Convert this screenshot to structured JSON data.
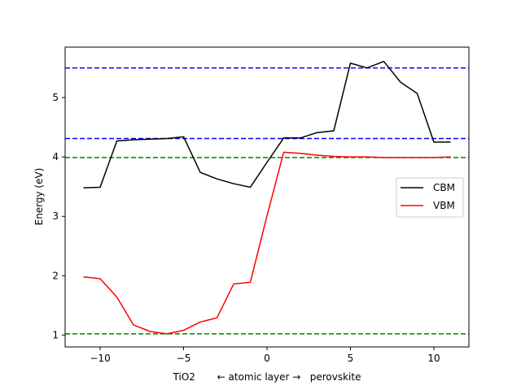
{
  "chart_data": {
    "type": "line",
    "title": "",
    "xlabel": "TiO2       ← atomic layer →   perovskite",
    "ylabel": "Energy (eV)",
    "xlim": [
      -12.1,
      12.1
    ],
    "ylim": [
      0.8,
      5.85
    ],
    "xticks": [
      -10,
      -5,
      0,
      5,
      10
    ],
    "yticks": [
      1,
      2,
      3,
      4,
      5
    ],
    "grid": false,
    "legend_position": "right",
    "series": [
      {
        "name": "CBM",
        "color": "#000000",
        "x": [
          -11,
          -10,
          -9,
          -8,
          -7,
          -6,
          -5,
          -4,
          -3,
          -2,
          -1,
          0,
          1,
          2,
          3,
          4,
          5,
          6,
          7,
          8,
          9,
          10,
          11
        ],
        "y": [
          3.48,
          3.49,
          4.27,
          4.29,
          4.3,
          4.31,
          4.34,
          3.74,
          3.63,
          3.55,
          3.49,
          3.91,
          4.32,
          4.32,
          4.41,
          4.44,
          5.58,
          5.5,
          5.61,
          5.26,
          5.07,
          4.25,
          4.25
        ]
      },
      {
        "name": "VBM",
        "color": "#ff0000",
        "x": [
          -11,
          -10,
          -9,
          -8,
          -7,
          -6,
          -5,
          -4,
          -3,
          -2,
          -1,
          0,
          1,
          2,
          3,
          4,
          5,
          6,
          7,
          8,
          9,
          10,
          11
        ],
        "y": [
          1.98,
          1.95,
          1.64,
          1.17,
          1.06,
          1.02,
          1.08,
          1.22,
          1.29,
          1.86,
          1.89,
          3.01,
          4.08,
          4.06,
          4.03,
          4.01,
          4.0,
          4.0,
          3.99,
          3.99,
          3.99,
          3.99,
          4.0
        ]
      }
    ],
    "hlines": [
      {
        "y": 5.5,
        "color": "#0000ff",
        "style": "dashed"
      },
      {
        "y": 4.31,
        "color": "#0000ff",
        "style": "dashed"
      },
      {
        "y": 3.99,
        "color": "#008000",
        "style": "dashed"
      },
      {
        "y": 1.02,
        "color": "#008000",
        "style": "dashed"
      }
    ]
  }
}
